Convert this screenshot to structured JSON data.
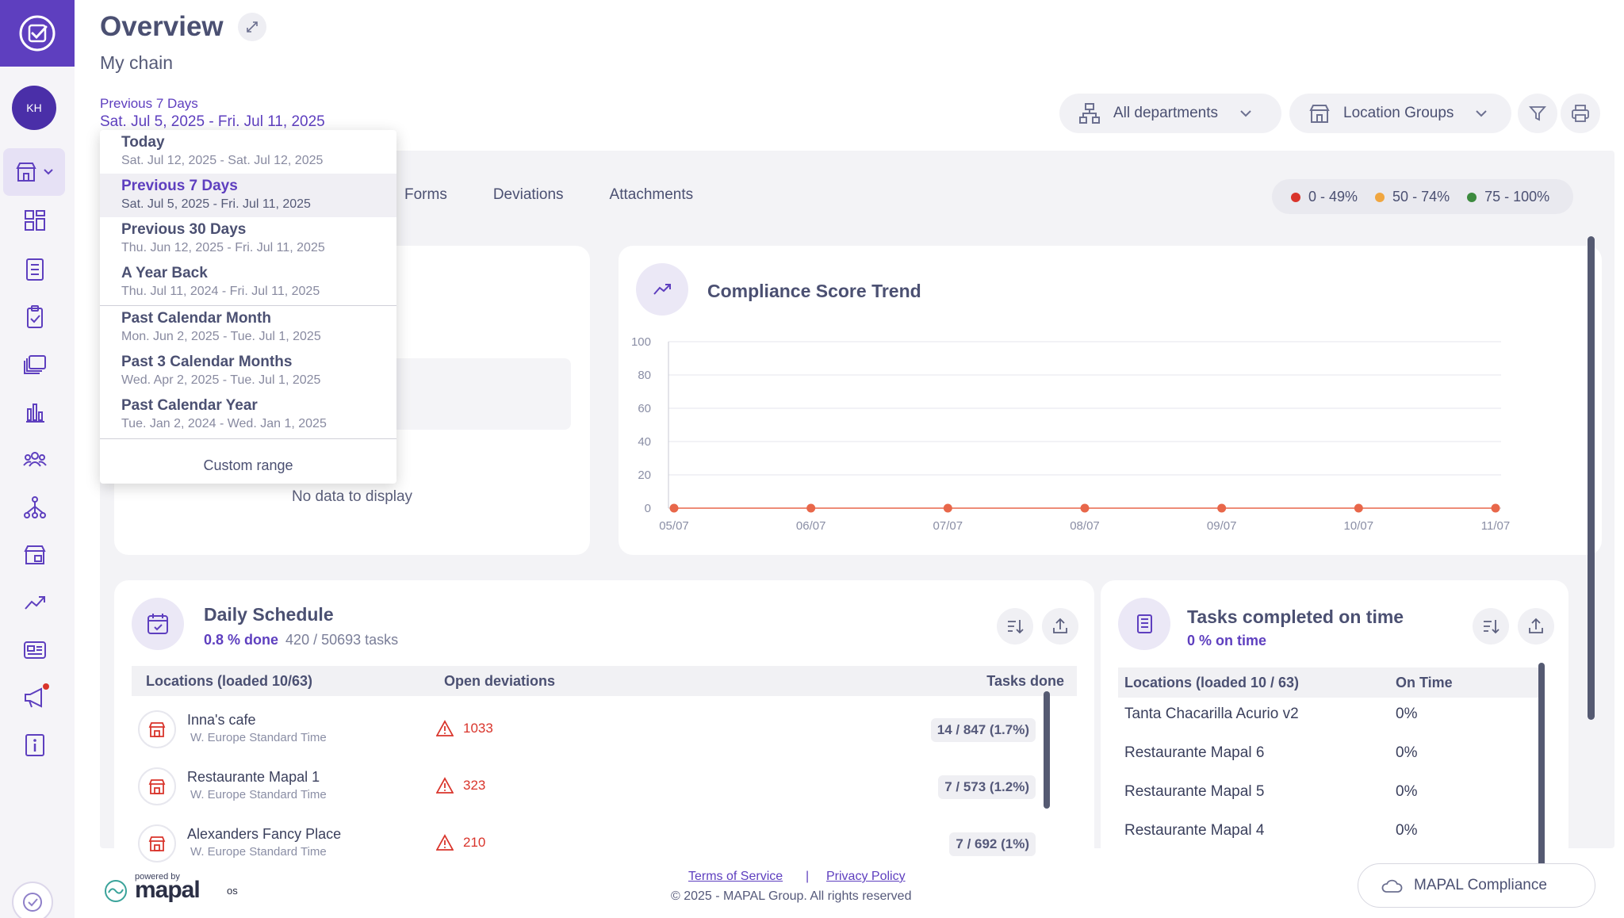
{
  "header": {
    "title": "Overview",
    "subtitle": "My chain",
    "period_label": "Previous 7 Days",
    "period_range": "Sat. Jul 5, 2025 - Fri. Jul 11, 2025",
    "departments": "All departments",
    "location_groups": "Location Groups"
  },
  "sidebar": {
    "avatar": "KH"
  },
  "tabs": [
    "Forms",
    "Deviations",
    "Attachments"
  ],
  "legend": [
    {
      "label": "0 - 49%",
      "color": "#d9342b"
    },
    {
      "label": "50 - 74%",
      "color": "#f0a640"
    },
    {
      "label": "75 - 100%",
      "color": "#3c8a3e"
    }
  ],
  "dropdown": {
    "items": [
      {
        "label": "Today",
        "range": "Sat. Jul 12, 2025 - Sat. Jul 12, 2025"
      },
      {
        "label": "Previous 7 Days",
        "range": "Sat. Jul 5, 2025 - Fri. Jul 11, 2025"
      },
      {
        "label": "Previous 30 Days",
        "range": "Thu. Jun 12, 2025 - Fri. Jul 11, 2025"
      },
      {
        "label": "A Year Back",
        "range": "Thu. Jul 11, 2024 - Fri. Jul 11, 2025"
      },
      {
        "label": "Past Calendar Month",
        "range": "Mon. Jun 2, 2025 - Tue. Jul 1, 2025"
      },
      {
        "label": "Past 3 Calendar Months",
        "range": "Wed. Apr 2, 2025 - Tue. Jul 1, 2025"
      },
      {
        "label": "Past Calendar Year",
        "range": "Tue. Jan 2, 2024 - Wed. Jan 1, 2025"
      }
    ],
    "custom": "Custom range"
  },
  "left_card": {
    "no_data": "No data to display"
  },
  "trend": {
    "title": "Compliance Score Trend",
    "chart_data": {
      "type": "line",
      "x": [
        "05/07",
        "06/07",
        "07/07",
        "08/07",
        "09/07",
        "10/07",
        "11/07"
      ],
      "series": [
        {
          "values": [
            0,
            0,
            0,
            0,
            0,
            0,
            0
          ]
        }
      ],
      "yticks": [
        "100",
        "80",
        "60",
        "40",
        "20",
        "0"
      ],
      "ylim": [
        0,
        100
      ],
      "point_color": "#e8674a"
    }
  },
  "daily": {
    "title": "Daily Schedule",
    "done": "0.8 % done",
    "count": "420 / 50693 tasks",
    "col_loc": "Locations (loaded 10/63)",
    "col_dev": "Open deviations",
    "col_tasks": "Tasks done",
    "rows": [
      {
        "name": "Inna's cafe",
        "tz": "W. Europe Standard Time",
        "dev": "1033",
        "tasks": "14 / 847 (1.7%)"
      },
      {
        "name": "Restaurante Mapal 1",
        "tz": "W. Europe Standard Time",
        "dev": "323",
        "tasks": "7 / 573 (1.2%)"
      },
      {
        "name": "Alexanders Fancy Place",
        "tz": "W. Europe Standard Time",
        "dev": "210",
        "tasks": "7 / 692 (1%)"
      }
    ]
  },
  "ontime": {
    "title": "Tasks completed on time",
    "pct": "0 % on time",
    "col_loc": "Locations (loaded 10 / 63)",
    "col_on": "On Time",
    "rows": [
      {
        "name": "Tanta Chacarilla Acurio v2",
        "val": "0%"
      },
      {
        "name": "Restaurante Mapal 6",
        "val": "0%"
      },
      {
        "name": "Restaurante Mapal 5",
        "val": "0%"
      },
      {
        "name": "Restaurante Mapal 4",
        "val": "0%"
      }
    ]
  },
  "footer": {
    "powered": "powered by",
    "brand": "mapal",
    "brand_sup": "os",
    "terms": "Terms of Service",
    "sep": "|",
    "privacy": "Privacy Policy",
    "copyright": "© 2025 - MAPAL Group. All rights reserved",
    "compliance_btn": "MAPAL Compliance"
  }
}
